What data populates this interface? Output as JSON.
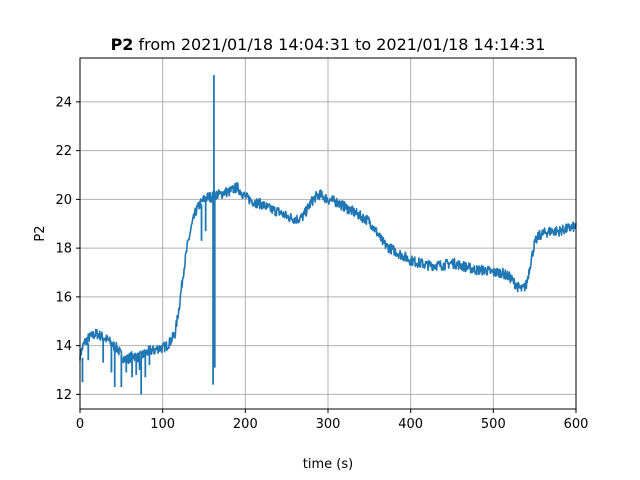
{
  "chart_data": {
    "type": "line",
    "title_bold": "P2",
    "title_rest": " from 2021/01/18 14:04:31 to 2021/01/18 14:14:31",
    "xlabel": "time (s)",
    "ylabel": "P2",
    "xlim": [
      0,
      600
    ],
    "ylim": [
      11.4,
      25.8
    ],
    "x_ticks": [
      0,
      100,
      200,
      300,
      400,
      500,
      600
    ],
    "y_ticks": [
      12,
      14,
      16,
      18,
      20,
      22,
      24
    ],
    "grid": true,
    "series_color": "#1f77b4",
    "series": [
      {
        "x": [
          0,
          5,
          10,
          15,
          20,
          25,
          30,
          35,
          40,
          45,
          50,
          55,
          60,
          65,
          70,
          75,
          80,
          85,
          90,
          95,
          100,
          105,
          110,
          115,
          120,
          125,
          130,
          135,
          140,
          145,
          150,
          155,
          160,
          162,
          165,
          170,
          175,
          180,
          185,
          190,
          195,
          200,
          210,
          220,
          230,
          240,
          250,
          260,
          265,
          270,
          275,
          280,
          285,
          290,
          295,
          300,
          310,
          320,
          330,
          340,
          350,
          360,
          365,
          370,
          375,
          380,
          385,
          390,
          400,
          410,
          420,
          430,
          440,
          450,
          460,
          470,
          480,
          490,
          500,
          510,
          520,
          530,
          535,
          540,
          545,
          550,
          555,
          560,
          570,
          580,
          590,
          600
        ],
        "y": [
          13.6,
          14.1,
          14.3,
          14.4,
          14.5,
          14.4,
          14.3,
          14.2,
          14.0,
          13.9,
          13.6,
          13.4,
          13.5,
          13.6,
          13.5,
          13.6,
          13.7,
          13.8,
          13.8,
          13.9,
          13.9,
          14.0,
          14.2,
          14.5,
          15.6,
          17.0,
          18.1,
          18.9,
          19.5,
          19.8,
          20.0,
          20.1,
          20.1,
          20.2,
          20.2,
          20.2,
          20.3,
          20.3,
          20.4,
          20.5,
          20.3,
          20.1,
          19.9,
          19.8,
          19.6,
          19.5,
          19.3,
          19.2,
          19.2,
          19.3,
          19.6,
          19.9,
          20.1,
          20.2,
          20.1,
          20.0,
          19.9,
          19.7,
          19.5,
          19.3,
          19.1,
          18.6,
          18.3,
          18.1,
          18.0,
          17.9,
          17.8,
          17.7,
          17.5,
          17.4,
          17.3,
          17.3,
          17.3,
          17.4,
          17.3,
          17.2,
          17.1,
          17.1,
          17.0,
          17.0,
          16.8,
          16.4,
          16.3,
          16.5,
          17.4,
          18.2,
          18.5,
          18.6,
          18.7,
          18.7,
          18.8,
          18.9
        ]
      }
    ],
    "spikes": [
      {
        "x": 3,
        "y0": 13.5,
        "y1": 12.5
      },
      {
        "x": 10,
        "y0": 14.1,
        "y1": 13.4
      },
      {
        "x": 28,
        "y0": 14.3,
        "y1": 13.3
      },
      {
        "x": 38,
        "y0": 14.0,
        "y1": 12.9
      },
      {
        "x": 42,
        "y0": 13.9,
        "y1": 12.3
      },
      {
        "x": 50,
        "y0": 13.6,
        "y1": 12.3
      },
      {
        "x": 56,
        "y0": 13.4,
        "y1": 12.9
      },
      {
        "x": 63,
        "y0": 13.5,
        "y1": 12.7
      },
      {
        "x": 68,
        "y0": 13.5,
        "y1": 12.8
      },
      {
        "x": 72,
        "y0": 13.5,
        "y1": 13.0
      },
      {
        "x": 74,
        "y0": 13.6,
        "y1": 12.0
      },
      {
        "x": 79,
        "y0": 13.7,
        "y1": 12.7
      },
      {
        "x": 84,
        "y0": 13.8,
        "y1": 13.2
      },
      {
        "x": 147,
        "y0": 19.8,
        "y1": 18.3
      },
      {
        "x": 152,
        "y0": 20.0,
        "y1": 18.7
      },
      {
        "x": 161,
        "y0": 20.1,
        "y1": 12.4
      },
      {
        "x": 162,
        "y0": 20.1,
        "y1": 25.1
      },
      {
        "x": 163,
        "y0": 20.2,
        "y1": 13.1
      }
    ]
  }
}
